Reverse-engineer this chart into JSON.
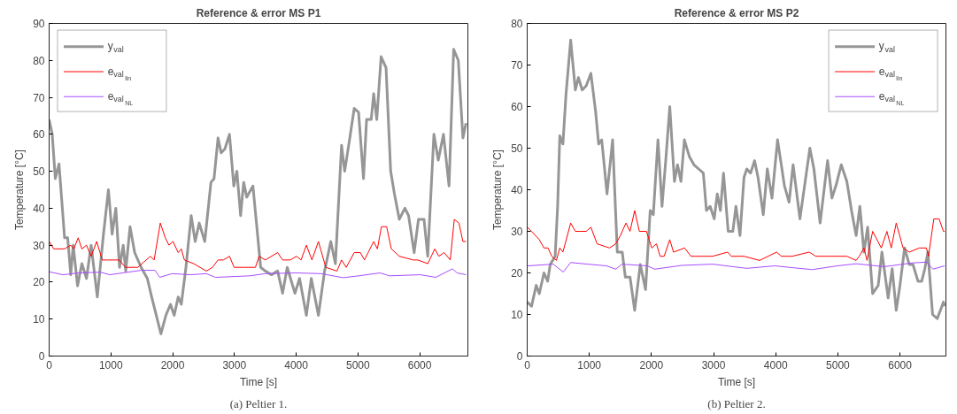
{
  "chart_data": [
    {
      "type": "line",
      "title": "Reference & error MS P1",
      "xlabel": "Time [s]",
      "ylabel": "Temperature [°C]",
      "xlim": [
        0,
        6780
      ],
      "ylim": [
        0,
        90
      ],
      "xticks": [
        0,
        1000,
        2000,
        3000,
        4000,
        5000,
        6000
      ],
      "yticks": [
        0,
        10,
        20,
        30,
        40,
        50,
        60,
        70,
        80,
        90
      ],
      "grid": false,
      "legend": "top left",
      "marker": "none",
      "line_style": "solid",
      "annotations": [
        "(a) Peltier 1."
      ],
      "series": [
        {
          "name": "y$_{val}$",
          "color": "#969696",
          "x": [
            0,
            50,
            100,
            160,
            250,
            300,
            350,
            390,
            460,
            530,
            605,
            680,
            780,
            880,
            960,
            1020,
            1080,
            1140,
            1200,
            1240,
            1310,
            1385,
            1490,
            1590,
            1660,
            1810,
            1890,
            1965,
            2025,
            2090,
            2140,
            2215,
            2300,
            2365,
            2430,
            2520,
            2620,
            2670,
            2735,
            2785,
            2845,
            2920,
            2990,
            3040,
            3100,
            3150,
            3200,
            3300,
            3425,
            3500,
            3600,
            3700,
            3780,
            3855,
            3980,
            4055,
            4165,
            4245,
            4360,
            4460,
            4560,
            4635,
            4735,
            4785,
            4850,
            4940,
            5010,
            5090,
            5140,
            5215,
            5255,
            5305,
            5375,
            5455,
            5530,
            5590,
            5670,
            5760,
            5820,
            5910,
            5980,
            6070,
            6130,
            6230,
            6300,
            6385,
            6475,
            6550,
            6625,
            6700,
            6750
          ],
          "values": [
            64,
            60,
            48,
            52,
            32,
            32,
            22,
            30,
            19,
            25,
            21,
            30,
            16,
            33,
            45,
            33,
            40,
            24,
            30,
            23,
            35,
            28,
            24,
            21,
            16,
            6,
            11,
            14,
            11,
            16,
            14,
            24,
            38,
            31,
            36,
            31,
            47,
            48,
            59,
            55,
            56,
            60,
            46,
            50,
            38,
            47,
            43,
            46,
            24,
            23,
            22,
            23,
            17,
            24,
            17,
            21,
            11,
            21,
            11,
            23,
            31,
            25,
            57,
            50,
            57,
            67,
            66,
            48,
            64,
            64,
            71,
            64,
            81,
            78,
            50,
            44,
            37,
            40,
            38,
            28,
            37,
            37,
            27,
            60,
            53,
            60,
            46,
            83,
            80,
            59,
            63
          ]
        },
        {
          "name": "e$_{val}$$_{lin}$",
          "color": "#ff0000",
          "x": [
            0,
            75,
            250,
            350,
            400,
            470,
            530,
            605,
            680,
            770,
            860,
            960,
            1135,
            1235,
            1435,
            1640,
            1700,
            1800,
            1880,
            1940,
            2005,
            2090,
            2140,
            2190,
            2340,
            2545,
            2645,
            2735,
            2820,
            2920,
            2995,
            3150,
            3340,
            3400,
            3500,
            3700,
            3780,
            3905,
            4005,
            4080,
            4165,
            4255,
            4360,
            4480,
            4660,
            4735,
            4810,
            4940,
            5040,
            5105,
            5165,
            5255,
            5315,
            5380,
            5465,
            5540,
            5670,
            5895,
            5970,
            6130,
            6245,
            6310,
            6395,
            6495,
            6560,
            6635,
            6700,
            6750
          ],
          "values": [
            31,
            29,
            29,
            30,
            29,
            32,
            29,
            30,
            27,
            31,
            26,
            26,
            26,
            24,
            24,
            27,
            26,
            36,
            32,
            30,
            31,
            28,
            29,
            26,
            25,
            23,
            24,
            26,
            26,
            27,
            24,
            24,
            24,
            27,
            26,
            28,
            26,
            26,
            27,
            26,
            30,
            26,
            31,
            24,
            23,
            26,
            24,
            28,
            28,
            26,
            28,
            31,
            29,
            35,
            35,
            29,
            27,
            26,
            26,
            25,
            29,
            27,
            28,
            26,
            37,
            36,
            31,
            31
          ]
        },
        {
          "name": "e$_{val}$$_{NL}$",
          "color": "#a64dff",
          "x": [
            0,
            225,
            480,
            830,
            980,
            1490,
            1715,
            1790,
            1990,
            2290,
            2545,
            2695,
            3245,
            3500,
            4005,
            4405,
            4760,
            5010,
            5360,
            5510,
            6010,
            6260,
            6530,
            6605,
            6750
          ],
          "values": [
            22.8,
            22,
            22.5,
            22.7,
            22,
            23.2,
            23.2,
            21.3,
            22.3,
            22,
            22.3,
            21.3,
            21.7,
            22.3,
            22.5,
            22.3,
            21.2,
            21.7,
            22.5,
            21.7,
            22,
            21.3,
            23.6,
            22.5,
            22
          ]
        }
      ]
    },
    {
      "type": "line",
      "title": "Reference & error MS P2",
      "xlabel": "Time [s]",
      "ylabel": "Temperature [°C]",
      "xlim": [
        0,
        6740
      ],
      "ylim": [
        0,
        80
      ],
      "xticks": [
        0,
        1000,
        2000,
        3000,
        4000,
        5000,
        6000
      ],
      "yticks": [
        0,
        10,
        20,
        30,
        40,
        50,
        60,
        70,
        80
      ],
      "grid": false,
      "legend": "top right",
      "marker": "none",
      "line_style": "solid",
      "annotations": [
        "(b) Peltier 2."
      ],
      "series": [
        {
          "name": "y$_{val}$",
          "color": "#969696",
          "x": [
            0,
            70,
            145,
            195,
            270,
            330,
            370,
            450,
            490,
            525,
            575,
            625,
            700,
            775,
            825,
            885,
            950,
            1025,
            1100,
            1150,
            1200,
            1285,
            1375,
            1450,
            1530,
            1580,
            1655,
            1730,
            1820,
            1905,
            1980,
            2030,
            2105,
            2170,
            2230,
            2295,
            2370,
            2420,
            2475,
            2530,
            2610,
            2685,
            2760,
            2835,
            2885,
            2945,
            3010,
            3060,
            3110,
            3160,
            3235,
            3310,
            3360,
            3425,
            3490,
            3535,
            3595,
            3660,
            3715,
            3800,
            3865,
            3940,
            4030,
            4140,
            4215,
            4280,
            4390,
            4550,
            4615,
            4715,
            4835,
            4905,
            4970,
            5055,
            5145,
            5220,
            5295,
            5355,
            5420,
            5480,
            5560,
            5650,
            5710,
            5810,
            5875,
            5940,
            6000,
            6075,
            6150,
            6210,
            6290,
            6350,
            6400,
            6450,
            6525,
            6600,
            6700,
            6720
          ],
          "values": [
            13,
            12,
            17,
            15,
            20,
            18,
            22,
            24,
            36,
            53,
            51,
            63,
            76,
            64,
            67,
            64,
            65,
            68,
            59,
            51,
            52,
            39,
            52,
            25,
            25,
            19,
            19,
            11,
            22,
            16,
            35,
            34,
            52,
            36,
            47,
            60,
            42,
            46,
            42,
            52,
            48,
            46,
            45,
            44,
            35,
            36,
            33,
            39,
            35,
            44,
            30,
            30,
            36,
            29,
            43,
            45,
            44,
            47,
            43,
            34,
            45,
            38,
            52,
            41,
            37,
            46,
            33,
            50,
            45,
            32,
            47,
            38,
            41,
            46,
            42,
            35,
            29,
            36,
            25,
            31,
            15,
            17,
            25,
            14,
            21,
            11,
            17,
            26,
            22,
            22,
            18,
            18,
            21,
            25,
            10,
            9,
            13,
            12
          ]
        },
        {
          "name": "e$_{val}$$_{lin}$",
          "color": "#ff0000",
          "x": [
            0,
            70,
            195,
            270,
            335,
            395,
            470,
            525,
            575,
            700,
            775,
            850,
            950,
            1025,
            1125,
            1325,
            1425,
            1500,
            1590,
            1655,
            1730,
            1805,
            1920,
            2005,
            2080,
            2140,
            2205,
            2295,
            2355,
            2535,
            2635,
            2985,
            3225,
            3285,
            3490,
            3740,
            4015,
            4090,
            4265,
            4540,
            4645,
            4870,
            4995,
            5145,
            5295,
            5345,
            5420,
            5470,
            5560,
            5700,
            5790,
            5860,
            5940,
            6050,
            6150,
            6310,
            6425,
            6460,
            6545,
            6630,
            6700,
            6720
          ],
          "values": [
            31,
            30,
            28,
            26,
            26,
            24,
            23,
            26,
            25,
            32,
            30,
            30,
            30,
            31,
            27,
            26,
            27,
            29,
            32,
            30,
            35,
            30,
            30,
            26,
            27,
            24,
            24,
            28,
            25,
            26,
            24,
            24,
            25,
            24,
            24,
            23,
            25,
            24,
            24,
            25,
            24,
            24,
            24,
            24,
            23,
            24,
            26,
            23,
            30,
            26,
            30,
            26,
            32,
            26,
            25,
            26,
            26,
            24,
            33,
            33,
            30,
            30
          ]
        },
        {
          "name": "e$_{val}$$_{NL}$",
          "color": "#a64dff",
          "x": [
            0,
            420,
            580,
            700,
            975,
            1275,
            1425,
            1525,
            1930,
            2055,
            2480,
            2985,
            3535,
            3985,
            4235,
            4590,
            4995,
            5295,
            5750,
            6200,
            6430,
            6530,
            6720
          ],
          "values": [
            21.7,
            22.1,
            20.2,
            22.5,
            22.1,
            21.7,
            20.9,
            22.1,
            21.7,
            20.9,
            21.8,
            22.1,
            21.1,
            21.7,
            21.3,
            20.8,
            21.7,
            22.2,
            21.5,
            22.4,
            22.6,
            20.9,
            21.7
          ]
        }
      ]
    }
  ]
}
